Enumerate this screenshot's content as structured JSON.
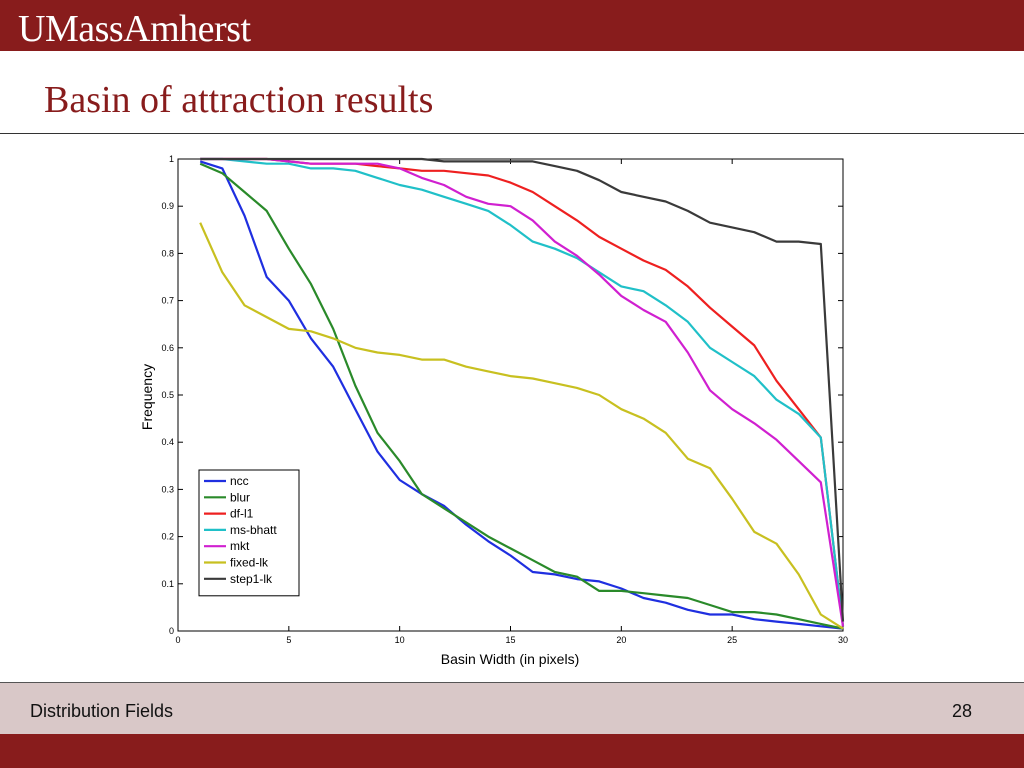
{
  "header": {
    "logo_text": "UMassAmherst",
    "title": "Basin of attraction results",
    "brand_color": "#881c1c"
  },
  "footer": {
    "text": "Distribution Fields",
    "page_number": "28",
    "band_color": "#d9c8c8"
  },
  "chart_data": {
    "type": "line",
    "title": "",
    "xlabel": "Basin Width (in pixels)",
    "ylabel": "Frequency",
    "xlim": [
      0,
      30
    ],
    "ylim": [
      0,
      1
    ],
    "xticks": [
      "0",
      "5",
      "10",
      "15",
      "20",
      "25",
      "30"
    ],
    "yticks": [
      "0",
      "0.1",
      "0.2",
      "0.3",
      "0.4",
      "0.5",
      "0.6",
      "0.7",
      "0.8",
      "0.9",
      "1"
    ],
    "grid": false,
    "legend_position": "bottom-left",
    "x": [
      1,
      2,
      3,
      4,
      5,
      6,
      7,
      8,
      9,
      10,
      11,
      12,
      13,
      14,
      15,
      16,
      17,
      18,
      19,
      20,
      21,
      22,
      23,
      24,
      25,
      26,
      27,
      28,
      29,
      30
    ],
    "series": [
      {
        "name": "ncc",
        "color": "#1f2fe0",
        "values": [
          0.995,
          0.98,
          0.88,
          0.75,
          0.7,
          0.62,
          0.56,
          0.47,
          0.38,
          0.32,
          0.29,
          0.265,
          0.225,
          0.19,
          0.16,
          0.125,
          0.12,
          0.11,
          0.105,
          0.09,
          0.07,
          0.06,
          0.045,
          0.035,
          0.035,
          0.025,
          0.02,
          0.015,
          0.01,
          0.005
        ]
      },
      {
        "name": "blur",
        "color": "#2a8a2a",
        "values": [
          0.99,
          0.97,
          0.93,
          0.89,
          0.81,
          0.735,
          0.64,
          0.52,
          0.42,
          0.36,
          0.29,
          0.26,
          0.23,
          0.2,
          0.175,
          0.15,
          0.125,
          0.115,
          0.085,
          0.085,
          0.08,
          0.075,
          0.07,
          0.055,
          0.04,
          0.04,
          0.035,
          0.025,
          0.015,
          0.005
        ]
      },
      {
        "name": "df-l1",
        "color": "#ee2020",
        "values": [
          1.0,
          1.0,
          1.0,
          1.0,
          0.995,
          0.99,
          0.99,
          0.99,
          0.985,
          0.98,
          0.975,
          0.975,
          0.97,
          0.965,
          0.95,
          0.93,
          0.9,
          0.87,
          0.835,
          0.81,
          0.785,
          0.765,
          0.73,
          0.685,
          0.645,
          0.605,
          0.53,
          0.47,
          0.41,
          0.01
        ]
      },
      {
        "name": "ms-bhatt",
        "color": "#20c0c8",
        "values": [
          1.0,
          1.0,
          0.995,
          0.99,
          0.99,
          0.98,
          0.98,
          0.975,
          0.96,
          0.945,
          0.935,
          0.92,
          0.905,
          0.89,
          0.86,
          0.825,
          0.81,
          0.79,
          0.76,
          0.73,
          0.72,
          0.69,
          0.655,
          0.6,
          0.57,
          0.54,
          0.49,
          0.46,
          0.41,
          0.01
        ]
      },
      {
        "name": "mkt",
        "color": "#d020d0",
        "values": [
          1.0,
          1.0,
          1.0,
          1.0,
          0.995,
          0.99,
          0.99,
          0.99,
          0.99,
          0.98,
          0.96,
          0.945,
          0.92,
          0.905,
          0.9,
          0.87,
          0.825,
          0.795,
          0.755,
          0.71,
          0.68,
          0.655,
          0.59,
          0.51,
          0.47,
          0.44,
          0.405,
          0.36,
          0.315,
          0.01
        ]
      },
      {
        "name": "fixed-lk",
        "color": "#c8c020",
        "values": [
          0.865,
          0.76,
          0.69,
          0.665,
          0.64,
          0.635,
          0.62,
          0.6,
          0.59,
          0.585,
          0.575,
          0.575,
          0.56,
          0.55,
          0.54,
          0.535,
          0.525,
          0.515,
          0.5,
          0.47,
          0.45,
          0.42,
          0.365,
          0.345,
          0.28,
          0.21,
          0.185,
          0.12,
          0.035,
          0.005
        ]
      },
      {
        "name": "step1-lk",
        "color": "#3a3a3a",
        "values": [
          1.0,
          1.0,
          1.0,
          1.0,
          1.0,
          1.0,
          1.0,
          1.0,
          1.0,
          1.0,
          1.0,
          0.995,
          0.995,
          0.995,
          0.995,
          0.995,
          0.985,
          0.975,
          0.955,
          0.93,
          0.92,
          0.91,
          0.89,
          0.865,
          0.855,
          0.845,
          0.825,
          0.825,
          0.82,
          0.02
        ]
      }
    ]
  }
}
